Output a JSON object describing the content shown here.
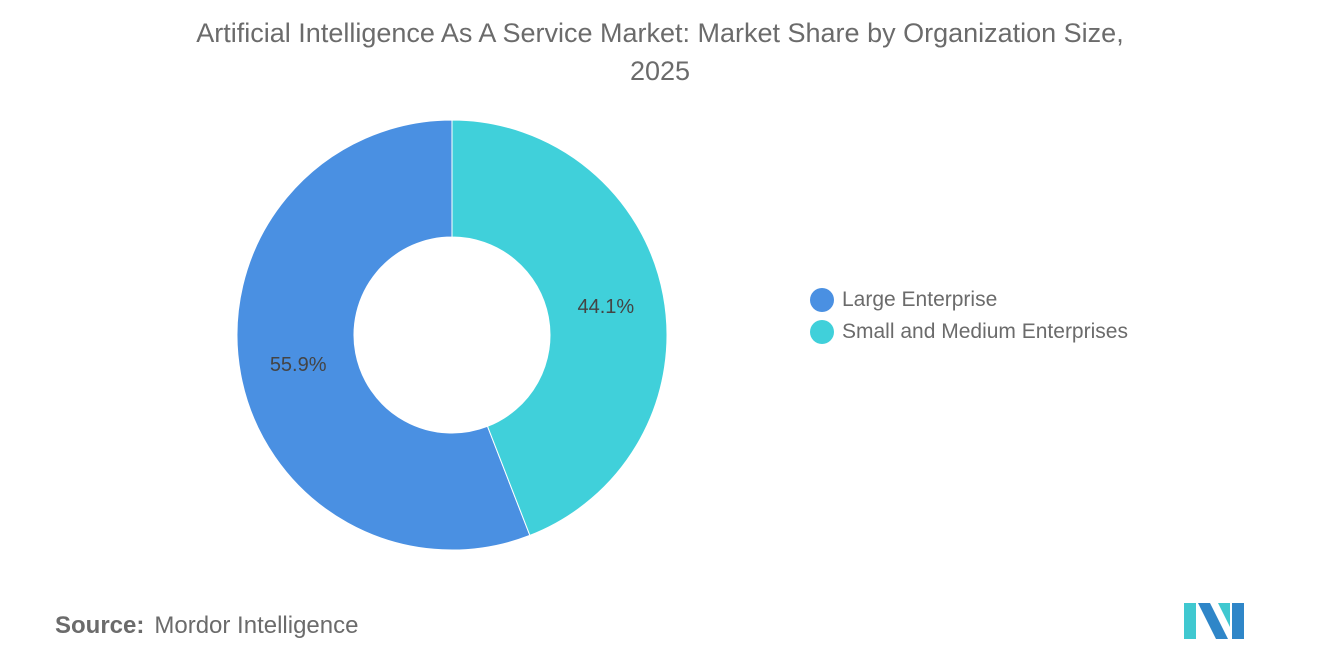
{
  "chart_data": {
    "type": "pie",
    "donut": true,
    "title": "Artificial Intelligence As A Service Market: Market Share by Organization Size, 2025",
    "title_lines": [
      "Artificial Intelligence As A Service Market: Market Share by Organization Size,",
      "2025"
    ],
    "categories": [
      "Large Enterprise",
      "Small and Medium Enterprises"
    ],
    "values": [
      55.9,
      44.1
    ],
    "labels": [
      "55.9%",
      "44.1%"
    ],
    "colors": [
      "#4a90e2",
      "#40d0da"
    ],
    "legend_position": "right"
  },
  "source": {
    "label": "Source:",
    "value": "Mordor Intelligence"
  },
  "logo": {
    "colors": [
      "#2f86c8",
      "#40c8d0"
    ]
  }
}
